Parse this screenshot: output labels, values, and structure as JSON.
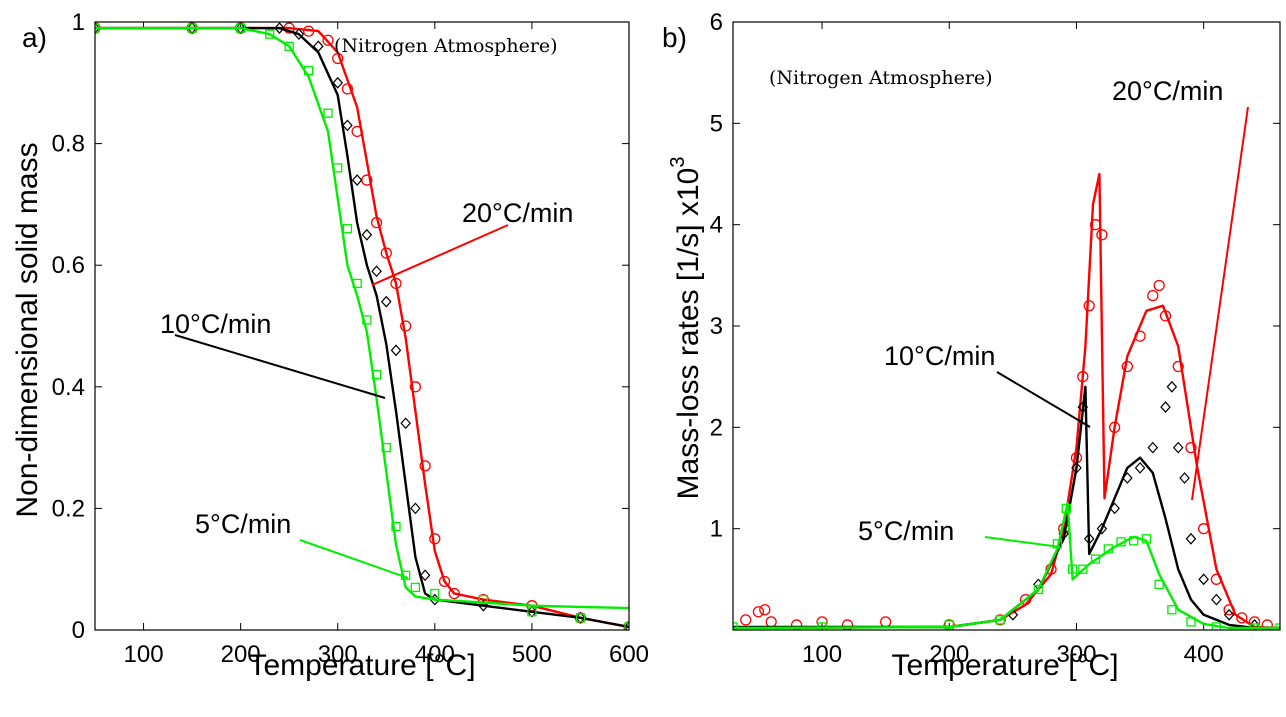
{
  "chart_data": [
    {
      "panel_label": "a)",
      "type": "line",
      "xlabel": "Temperature [°C]",
      "ylabel": "Non-dimensional solid mass",
      "xlim": [
        50,
        600
      ],
      "ylim": [
        0,
        1
      ],
      "xticks": [
        100,
        200,
        300,
        400,
        500,
        600
      ],
      "yticks": [
        0,
        0.2,
        0.4,
        0.6,
        0.8,
        1
      ],
      "ytick_labels": [
        "0",
        "0.2",
        "0.4",
        "0.6",
        "0.8",
        "1"
      ],
      "note": "(Nitrogen Atmosphere)",
      "series": [
        {
          "name": "20°C/min",
          "color": "#ff0000",
          "marker": "circle",
          "line": [
            [
              50,
              0.99
            ],
            [
              200,
              0.99
            ],
            [
              250,
              0.99
            ],
            [
              280,
              0.985
            ],
            [
              300,
              0.95
            ],
            [
              320,
              0.86
            ],
            [
              330,
              0.77
            ],
            [
              340,
              0.68
            ],
            [
              350,
              0.62
            ],
            [
              360,
              0.57
            ],
            [
              370,
              0.48
            ],
            [
              380,
              0.36
            ],
            [
              390,
              0.24
            ],
            [
              400,
              0.13
            ],
            [
              410,
              0.08
            ],
            [
              420,
              0.06
            ],
            [
              450,
              0.05
            ],
            [
              500,
              0.04
            ],
            [
              550,
              0.02
            ],
            [
              600,
              0.005
            ]
          ],
          "points": [
            [
              50,
              0.99
            ],
            [
              150,
              0.99
            ],
            [
              200,
              0.99
            ],
            [
              250,
              0.99
            ],
            [
              270,
              0.985
            ],
            [
              290,
              0.97
            ],
            [
              300,
              0.94
            ],
            [
              310,
              0.89
            ],
            [
              320,
              0.82
            ],
            [
              330,
              0.74
            ],
            [
              340,
              0.67
            ],
            [
              350,
              0.62
            ],
            [
              360,
              0.57
            ],
            [
              370,
              0.5
            ],
            [
              380,
              0.4
            ],
            [
              390,
              0.27
            ],
            [
              400,
              0.15
            ],
            [
              410,
              0.08
            ],
            [
              420,
              0.06
            ],
            [
              450,
              0.05
            ],
            [
              500,
              0.04
            ],
            [
              550,
              0.02
            ],
            [
              600,
              0.005
            ]
          ]
        },
        {
          "name": "10°C/min",
          "color": "#000000",
          "marker": "diamond",
          "line": [
            [
              50,
              0.99
            ],
            [
              200,
              0.99
            ],
            [
              240,
              0.99
            ],
            [
              260,
              0.98
            ],
            [
              280,
              0.95
            ],
            [
              300,
              0.88
            ],
            [
              310,
              0.78
            ],
            [
              320,
              0.67
            ],
            [
              330,
              0.6
            ],
            [
              340,
              0.55
            ],
            [
              350,
              0.47
            ],
            [
              360,
              0.36
            ],
            [
              370,
              0.24
            ],
            [
              380,
              0.12
            ],
            [
              390,
              0.06
            ],
            [
              400,
              0.05
            ],
            [
              450,
              0.04
            ],
            [
              500,
              0.03
            ],
            [
              550,
              0.02
            ],
            [
              600,
              0.005
            ]
          ],
          "points": [
            [
              50,
              0.99
            ],
            [
              150,
              0.99
            ],
            [
              200,
              0.99
            ],
            [
              240,
              0.99
            ],
            [
              260,
              0.98
            ],
            [
              280,
              0.96
            ],
            [
              300,
              0.9
            ],
            [
              310,
              0.83
            ],
            [
              320,
              0.74
            ],
            [
              330,
              0.65
            ],
            [
              340,
              0.59
            ],
            [
              350,
              0.54
            ],
            [
              360,
              0.46
            ],
            [
              370,
              0.34
            ],
            [
              380,
              0.2
            ],
            [
              390,
              0.09
            ],
            [
              400,
              0.05
            ],
            [
              450,
              0.04
            ],
            [
              500,
              0.03
            ],
            [
              550,
              0.02
            ],
            [
              600,
              0.005
            ]
          ]
        },
        {
          "name": "5°C/min",
          "color": "#00ee00",
          "marker": "square",
          "line": [
            [
              50,
              0.99
            ],
            [
              200,
              0.99
            ],
            [
              230,
              0.98
            ],
            [
              250,
              0.96
            ],
            [
              270,
              0.91
            ],
            [
              290,
              0.82
            ],
            [
              300,
              0.71
            ],
            [
              310,
              0.6
            ],
            [
              320,
              0.55
            ],
            [
              330,
              0.49
            ],
            [
              340,
              0.38
            ],
            [
              350,
              0.26
            ],
            [
              360,
              0.14
            ],
            [
              370,
              0.07
            ],
            [
              380,
              0.055
            ],
            [
              400,
              0.05
            ],
            [
              450,
              0.045
            ],
            [
              500,
              0.04
            ],
            [
              550,
              0.038
            ],
            [
              600,
              0.036
            ]
          ],
          "points": [
            [
              50,
              0.99
            ],
            [
              150,
              0.99
            ],
            [
              200,
              0.99
            ],
            [
              230,
              0.98
            ],
            [
              250,
              0.96
            ],
            [
              270,
              0.92
            ],
            [
              290,
              0.85
            ],
            [
              300,
              0.76
            ],
            [
              310,
              0.66
            ],
            [
              320,
              0.57
            ],
            [
              330,
              0.51
            ],
            [
              340,
              0.42
            ],
            [
              350,
              0.3
            ],
            [
              360,
              0.17
            ],
            [
              370,
              0.09
            ],
            [
              380,
              0.07
            ],
            [
              400,
              0.06
            ],
            [
              450,
              0.05
            ],
            [
              500,
              0.03
            ],
            [
              550,
              0.02
            ],
            [
              600,
              0.005
            ]
          ]
        }
      ],
      "annotations": [
        "20°C/min",
        "10°C/min",
        "5°C/min"
      ]
    },
    {
      "panel_label": "b)",
      "type": "line",
      "xlabel": "Temperature [°C]",
      "ylabel": "Mass-loss rates [1/s] x10",
      "ylabel_superscript": "3",
      "xlim": [
        30,
        460
      ],
      "ylim": [
        0,
        6
      ],
      "xticks": [
        100,
        200,
        300,
        400
      ],
      "yticks": [
        1,
        2,
        3,
        4,
        5,
        6
      ],
      "note": "(Nitrogen Atmosphere)",
      "series": [
        {
          "name": "20°C/min",
          "color": "#ff0000",
          "marker": "circle",
          "line": [
            [
              30,
              0.02
            ],
            [
              200,
              0.03
            ],
            [
              240,
              0.1
            ],
            [
              260,
              0.25
            ],
            [
              280,
              0.55
            ],
            [
              290,
              1.0
            ],
            [
              300,
              1.8
            ],
            [
              307,
              2.8
            ],
            [
              313,
              4.2
            ],
            [
              318,
              4.5
            ],
            [
              322,
              1.3
            ],
            [
              330,
              2.0
            ],
            [
              340,
              2.7
            ],
            [
              355,
              3.15
            ],
            [
              368,
              3.2
            ],
            [
              380,
              2.8
            ],
            [
              395,
              1.6
            ],
            [
              410,
              0.6
            ],
            [
              425,
              0.15
            ],
            [
              440,
              0.03
            ],
            [
              460,
              0.02
            ]
          ],
          "points": [
            [
              40,
              0.1
            ],
            [
              50,
              0.18
            ],
            [
              55,
              0.2
            ],
            [
              60,
              0.08
            ],
            [
              80,
              0.05
            ],
            [
              100,
              0.08
            ],
            [
              120,
              0.05
            ],
            [
              150,
              0.08
            ],
            [
              200,
              0.05
            ],
            [
              240,
              0.1
            ],
            [
              260,
              0.3
            ],
            [
              280,
              0.6
            ],
            [
              290,
              1.0
            ],
            [
              300,
              1.7
            ],
            [
              305,
              2.5
            ],
            [
              310,
              3.2
            ],
            [
              315,
              4.0
            ],
            [
              320,
              3.9
            ],
            [
              330,
              2.0
            ],
            [
              340,
              2.6
            ],
            [
              350,
              2.9
            ],
            [
              360,
              3.3
            ],
            [
              365,
              3.4
            ],
            [
              370,
              3.1
            ],
            [
              380,
              2.6
            ],
            [
              390,
              1.8
            ],
            [
              400,
              1.0
            ],
            [
              410,
              0.5
            ],
            [
              420,
              0.2
            ],
            [
              430,
              0.12
            ],
            [
              440,
              0.08
            ],
            [
              450,
              0.05
            ]
          ]
        },
        {
          "name": "10°C/min",
          "color": "#000000",
          "marker": "diamond",
          "line": [
            [
              30,
              0.03
            ],
            [
              200,
              0.03
            ],
            [
              240,
              0.1
            ],
            [
              270,
              0.4
            ],
            [
              290,
              0.9
            ],
            [
              300,
              1.6
            ],
            [
              307,
              2.4
            ],
            [
              310,
              0.75
            ],
            [
              320,
              1.0
            ],
            [
              330,
              1.3
            ],
            [
              340,
              1.6
            ],
            [
              350,
              1.7
            ],
            [
              360,
              1.55
            ],
            [
              370,
              1.1
            ],
            [
              380,
              0.6
            ],
            [
              390,
              0.3
            ],
            [
              400,
              0.15
            ],
            [
              420,
              0.05
            ],
            [
              440,
              0.02
            ],
            [
              460,
              0.02
            ]
          ],
          "points": [
            [
              250,
              0.15
            ],
            [
              270,
              0.45
            ],
            [
              290,
              0.95
            ],
            [
              300,
              1.6
            ],
            [
              305,
              2.2
            ],
            [
              310,
              0.9
            ],
            [
              320,
              1.0
            ],
            [
              330,
              1.2
            ],
            [
              340,
              1.5
            ],
            [
              350,
              1.6
            ],
            [
              360,
              1.8
            ],
            [
              370,
              2.2
            ],
            [
              375,
              2.4
            ],
            [
              380,
              1.8
            ],
            [
              385,
              1.5
            ],
            [
              390,
              0.9
            ],
            [
              400,
              0.5
            ],
            [
              410,
              0.3
            ],
            [
              420,
              0.15
            ],
            [
              440,
              0.05
            ]
          ]
        },
        {
          "name": "5°C/min",
          "color": "#00ee00",
          "marker": "square",
          "line": [
            [
              30,
              0.02
            ],
            [
              200,
              0.03
            ],
            [
              240,
              0.1
            ],
            [
              270,
              0.4
            ],
            [
              285,
              0.8
            ],
            [
              293,
              1.25
            ],
            [
              297,
              0.5
            ],
            [
              310,
              0.65
            ],
            [
              330,
              0.82
            ],
            [
              345,
              0.92
            ],
            [
              355,
              0.88
            ],
            [
              365,
              0.55
            ],
            [
              380,
              0.2
            ],
            [
              400,
              0.06
            ],
            [
              420,
              0.02
            ],
            [
              460,
              0.02
            ]
          ],
          "points": [
            [
              30,
              0.03
            ],
            [
              100,
              0.03
            ],
            [
              200,
              0.05
            ],
            [
              240,
              0.1
            ],
            [
              270,
              0.4
            ],
            [
              285,
              0.85
            ],
            [
              292,
              1.2
            ],
            [
              297,
              0.6
            ],
            [
              305,
              0.6
            ],
            [
              315,
              0.7
            ],
            [
              325,
              0.8
            ],
            [
              335,
              0.87
            ],
            [
              345,
              0.88
            ],
            [
              355,
              0.9
            ],
            [
              365,
              0.45
            ],
            [
              375,
              0.2
            ],
            [
              390,
              0.08
            ],
            [
              410,
              0.03
            ],
            [
              440,
              0.02
            ],
            [
              460,
              0.02
            ]
          ]
        }
      ],
      "annotations": [
        "20°C/min",
        "10°C/min",
        "5°C/min"
      ]
    }
  ]
}
